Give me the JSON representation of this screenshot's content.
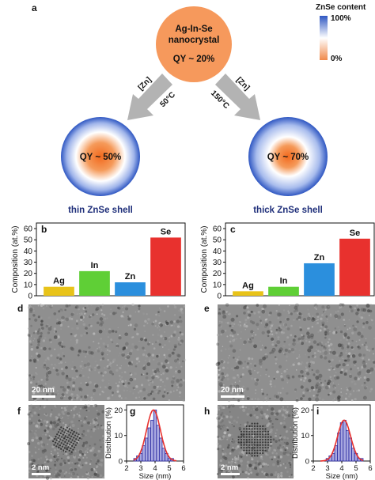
{
  "panel_labels": {
    "a": "a",
    "b": "b",
    "c": "c",
    "d": "d",
    "e": "e",
    "f": "f",
    "g": "g",
    "h": "h",
    "i": "i"
  },
  "schematic": {
    "core_line1": "Ag-In-Se",
    "core_line2": "nanocrystal",
    "core_qy": "QY ~ 20%",
    "left_arrow_zn": "[Zn]",
    "left_arrow_temp": "50°C",
    "right_arrow_zn": "[Zn]",
    "right_arrow_temp": "150°C",
    "left_qy": "QY ~ 50%",
    "right_qy": "QY ~ 70%",
    "left_caption": "thin ZnSe shell",
    "right_caption": "thick ZnSe shell",
    "colorbar_title": "ZnSe content",
    "colorbar_top": "100%",
    "colorbar_bottom": "0%",
    "colors": {
      "core": "#f6995c",
      "shell": "#3f63c4",
      "arrow": "#b3b3b3",
      "caption": "#1f2f7a"
    }
  },
  "tem": {
    "d_scale": "20 nm",
    "e_scale": "20 nm",
    "f_scale": "2 nm",
    "h_scale": "2 nm"
  },
  "chart_data": [
    {
      "type": "bar",
      "panel": "b",
      "categories": [
        "Ag",
        "In",
        "Zn",
        "Se"
      ],
      "values": [
        8,
        22,
        12,
        52
      ],
      "colors": [
        "#e8c319",
        "#5fcf36",
        "#2b8fdd",
        "#e8312e"
      ],
      "ylabel": "Composition (at.%)",
      "ylim": [
        0,
        65
      ],
      "yticks": [
        "0",
        "10",
        "20",
        "30",
        "40",
        "50",
        "60"
      ]
    },
    {
      "type": "bar",
      "panel": "c",
      "categories": [
        "Ag",
        "In",
        "Zn",
        "Se"
      ],
      "values": [
        4,
        8,
        29,
        51
      ],
      "colors": [
        "#e8c319",
        "#5fcf36",
        "#2b8fdd",
        "#e8312e"
      ],
      "ylabel": "Composition (at.%)",
      "ylim": [
        0,
        65
      ],
      "yticks": [
        "0",
        "10",
        "20",
        "30",
        "40",
        "50",
        "60"
      ]
    },
    {
      "type": "bar",
      "panel": "g",
      "x": [
        2.6,
        2.8,
        3.0,
        3.2,
        3.4,
        3.6,
        3.8,
        4.0,
        4.2,
        4.4,
        4.6,
        4.8,
        5.0,
        5.2
      ],
      "values": [
        1,
        2,
        3,
        6,
        9,
        13,
        16,
        20,
        14,
        9,
        5,
        3,
        1,
        1
      ],
      "fit": "gaussian",
      "xlabel": "Size (nm)",
      "ylabel": "Distribution (%)",
      "xlim": [
        2,
        6
      ],
      "ylim": [
        0,
        22
      ],
      "xticks": [
        "2",
        "3",
        "4",
        "5",
        "6"
      ],
      "yticks": [
        "0",
        "10",
        "20"
      ]
    },
    {
      "type": "bar",
      "panel": "i",
      "x": [
        3.0,
        3.2,
        3.4,
        3.6,
        3.8,
        4.0,
        4.2,
        4.4,
        4.6,
        4.8,
        5.0,
        5.2,
        5.4
      ],
      "values": [
        1,
        2,
        3,
        6,
        11,
        15,
        16,
        12,
        9,
        5,
        3,
        1,
        1
      ],
      "fit": "gaussian",
      "xlabel": "Size (nm)",
      "ylabel": "Distribution (%)",
      "xlim": [
        2,
        6
      ],
      "ylim": [
        0,
        22
      ],
      "xticks": [
        "2",
        "3",
        "4",
        "5",
        "6"
      ],
      "yticks": [
        "0",
        "10",
        "20"
      ]
    }
  ]
}
